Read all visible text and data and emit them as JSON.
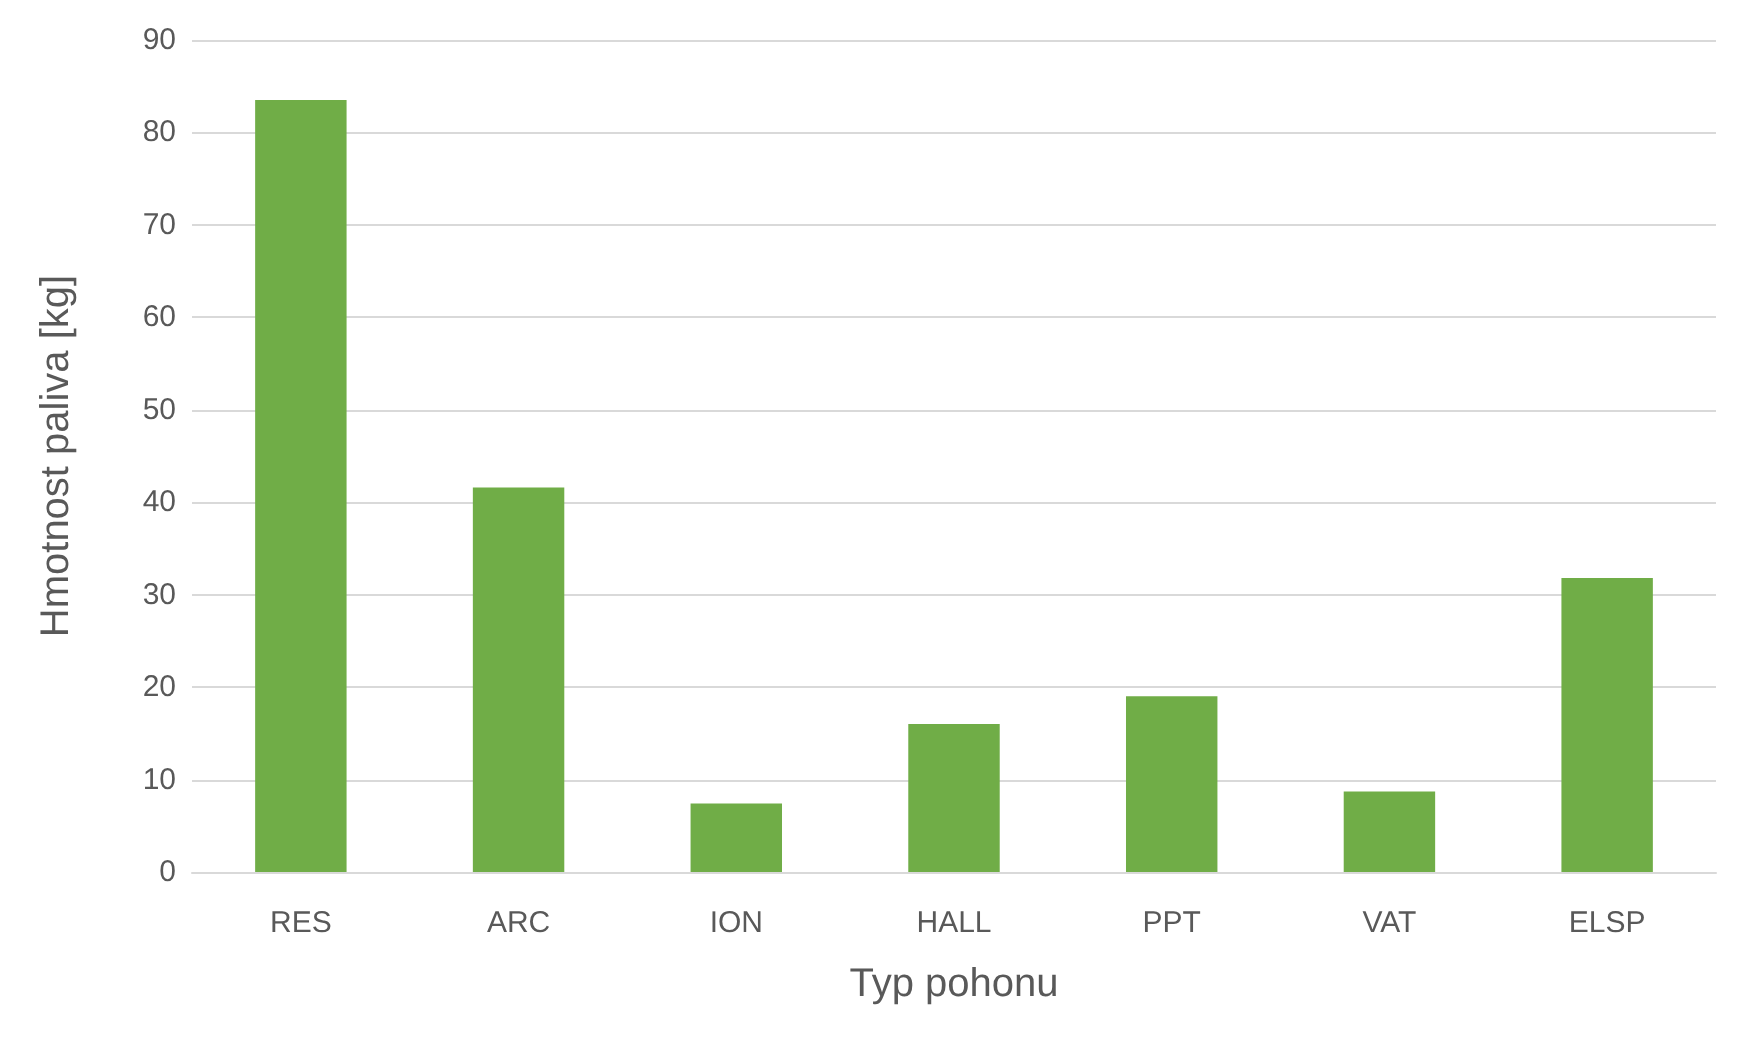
{
  "chart_data": {
    "type": "bar",
    "xlabel": "Typ pohonu",
    "ylabel": "Hmotnost paliva [kg]",
    "categories": [
      "RES",
      "ARC",
      "ION",
      "HALL",
      "PPT",
      "VAT",
      "ELSP"
    ],
    "values": [
      83.5,
      41.6,
      7.4,
      16.0,
      19.0,
      8.7,
      31.8
    ],
    "color": "#70ad47",
    "ylim": [
      0,
      90
    ],
    "yticks": [
      0,
      10,
      20,
      30,
      40,
      50,
      60,
      70,
      80,
      90
    ],
    "grid": "y"
  }
}
